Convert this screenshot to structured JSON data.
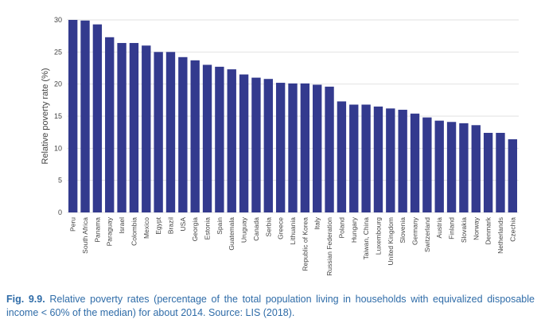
{
  "caption": {
    "figure_label": "Fig. 9.9.",
    "text": "Relative poverty rates (percentage of the total population living in households with equivalized disposable income < 60% of the median) for about 2014. Source: LIS (2018)."
  },
  "colors": {
    "bar": "#333a8e",
    "grid": "#e2e2e2",
    "text": "#444444",
    "caption": "#2f6ca8"
  },
  "chart_data": {
    "type": "bar",
    "ylabel": "Relative poverty rate (%)",
    "ylim": [
      0,
      30
    ],
    "yticks": [
      0,
      5,
      10,
      15,
      20,
      25,
      30
    ],
    "grid": true,
    "categories": [
      "Peru",
      "South Africa",
      "Panama",
      "Paraguay",
      "Israel",
      "Colombia",
      "Mexico",
      "Egypt",
      "Brazil",
      "USA",
      "Georgia",
      "Estonia",
      "Spain",
      "Guatemala",
      "Uruguay",
      "Canada",
      "Serbia",
      "Greece",
      "Lithuania",
      "Republic of Korea",
      "Italy",
      "Russian Federation",
      "Poland",
      "Hungary",
      "Taiwan, China",
      "Luxembourg",
      "United Kingdom",
      "Slovenia",
      "Germany",
      "Switzerland",
      "Austria",
      "Finland",
      "Slovakia",
      "Norway",
      "Denmark",
      "Netherlands",
      "Czechia"
    ],
    "values": [
      30.0,
      29.9,
      29.3,
      27.3,
      26.4,
      26.4,
      26.0,
      25.0,
      25.0,
      24.2,
      23.7,
      23.0,
      22.7,
      22.3,
      21.5,
      21.0,
      20.8,
      20.2,
      20.1,
      20.1,
      19.9,
      19.6,
      17.3,
      16.8,
      16.8,
      16.5,
      16.2,
      16.0,
      15.4,
      14.8,
      14.3,
      14.1,
      13.9,
      13.6,
      12.4,
      12.4,
      11.4
    ]
  }
}
